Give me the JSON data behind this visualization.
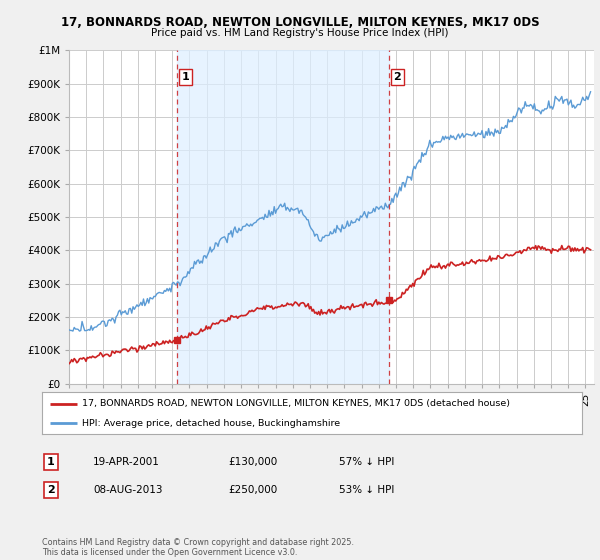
{
  "title1": "17, BONNARDS ROAD, NEWTON LONGVILLE, MILTON KEYNES, MK17 0DS",
  "title2": "Price paid vs. HM Land Registry's House Price Index (HPI)",
  "legend_line1": "17, BONNARDS ROAD, NEWTON LONGVILLE, MILTON KEYNES, MK17 0DS (detached house)",
  "legend_line2": "HPI: Average price, detached house, Buckinghamshire",
  "sale1_label": "1",
  "sale1_date": "19-APR-2001",
  "sale1_price": "£130,000",
  "sale1_hpi": "57% ↓ HPI",
  "sale2_label": "2",
  "sale2_date": "08-AUG-2013",
  "sale2_price": "£250,000",
  "sale2_hpi": "53% ↓ HPI",
  "footnote": "Contains HM Land Registry data © Crown copyright and database right 2025.\nThis data is licensed under the Open Government Licence v3.0.",
  "sale1_x": 2001.3,
  "sale1_y": 130000,
  "sale2_x": 2013.6,
  "sale2_y": 250000,
  "red_color": "#cc2222",
  "blue_color": "#5b9bd5",
  "shade_color": "#ddeeff",
  "vline_color": "#cc2222",
  "bg_color": "#f0f0f0",
  "plot_bg": "#ffffff",
  "grid_color": "#cccccc",
  "ylim": [
    0,
    1000000
  ],
  "xlim_start": 1995,
  "xlim_end": 2025.5
}
